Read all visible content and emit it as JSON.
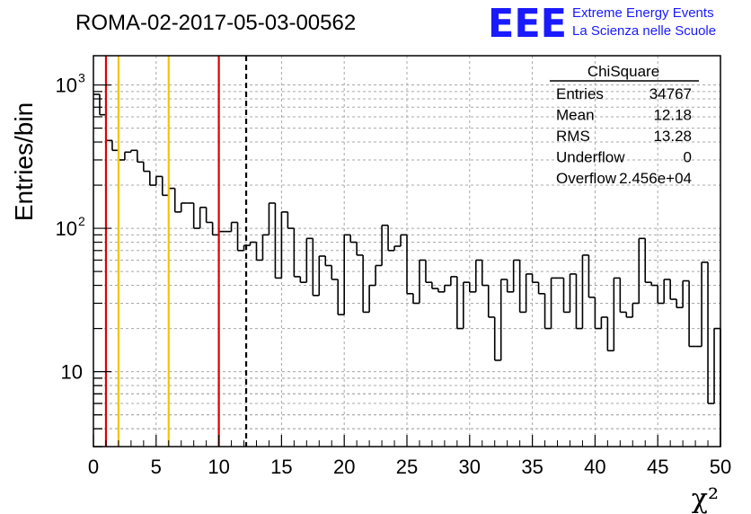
{
  "header": {
    "run_title": "ROMA-02-2017-05-03-00562",
    "logo_text": "EEE",
    "logo_line1": "Extreme Energy Events",
    "logo_line2": "La Scienza nelle Scuole",
    "logo_color": "#1a1aff"
  },
  "stats_box": {
    "title": "ChiSquare",
    "rows": [
      {
        "label": "Entries",
        "value": "34767"
      },
      {
        "label": "Mean",
        "value": "12.18"
      },
      {
        "label": "RMS",
        "value": "13.28"
      },
      {
        "label": "Underflow",
        "value": "0"
      },
      {
        "label": "Overflow",
        "value": "2.456e+04"
      }
    ]
  },
  "chart_data": {
    "type": "histogram",
    "xlabel": "χ²",
    "ylabel": "Entries/bin",
    "xlim": [
      0,
      50
    ],
    "ylim": [
      3,
      1600
    ],
    "yscale": "log",
    "grid": true,
    "bin_width": 0.5,
    "x_ticks": [
      0,
      5,
      10,
      15,
      20,
      25,
      30,
      35,
      40,
      45,
      50
    ],
    "y_tick_labels": [
      {
        "value": 10,
        "label": "10"
      },
      {
        "value": 100,
        "label": "10",
        "exponent": "2"
      },
      {
        "value": 1000,
        "label": "10",
        "exponent": "3"
      }
    ],
    "values": [
      860,
      620,
      410,
      350,
      300,
      340,
      350,
      290,
      250,
      200,
      230,
      170,
      190,
      130,
      150,
      150,
      100,
      140,
      110,
      90,
      95,
      95,
      110,
      70,
      76,
      80,
      60,
      90,
      150,
      45,
      130,
      100,
      46,
      42,
      85,
      34,
      64,
      55,
      44,
      25,
      90,
      80,
      65,
      26,
      40,
      55,
      105,
      70,
      75,
      90,
      35,
      30,
      60,
      42,
      38,
      36,
      40,
      46,
      20,
      42,
      36,
      60,
      40,
      24,
      12,
      44,
      36,
      60,
      26,
      48,
      42,
      35,
      20,
      45,
      45,
      26,
      48,
      20,
      65,
      33,
      20,
      24,
      14,
      45,
      26,
      24,
      30,
      85,
      42,
      40,
      30,
      44,
      32,
      28,
      43,
      15,
      15,
      58,
      6,
      20,
      60,
      15,
      44,
      24
    ],
    "reference_lines": [
      {
        "x": 1,
        "color": "#dd0000",
        "style": "solid"
      },
      {
        "x": 2,
        "color": "#f5c400",
        "style": "solid"
      },
      {
        "x": 6,
        "color": "#f5c400",
        "style": "solid"
      },
      {
        "x": 10,
        "color": "#dd0000",
        "style": "solid"
      },
      {
        "x": 12.18,
        "color": "#000000",
        "style": "dashed"
      }
    ]
  }
}
